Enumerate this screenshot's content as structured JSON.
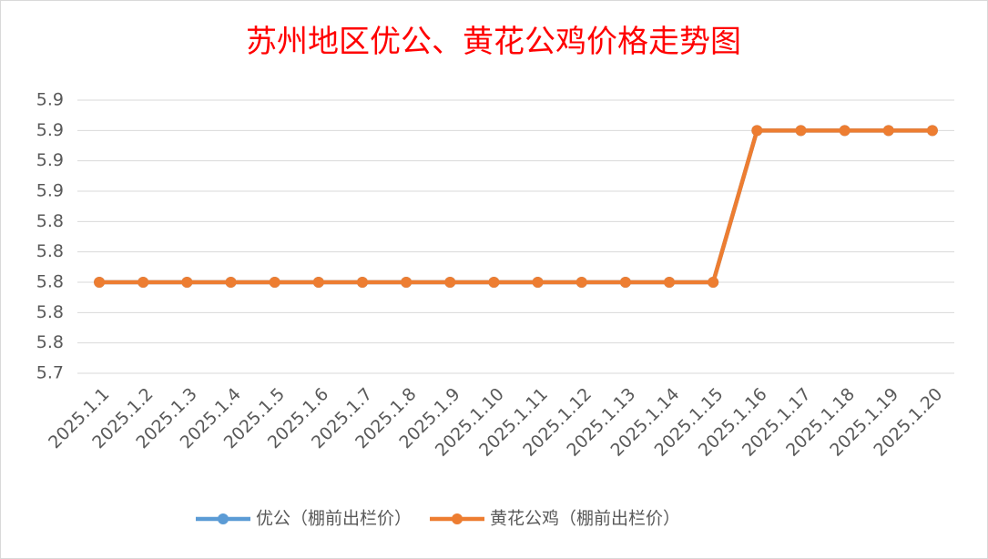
{
  "chart_data": {
    "type": "line",
    "title": "苏州地区优公、黄花公鸡价格走势图",
    "categories": [
      "2025.1.1",
      "2025.1.2",
      "2025.1.3",
      "2025.1.4",
      "2025.1.5",
      "2025.1.6",
      "2025.1.7",
      "2025.1.8",
      "2025.1.9",
      "2025.1.10",
      "2025.1.11",
      "2025.1.12",
      "2025.1.13",
      "2025.1.14",
      "2025.1.15",
      "2025.1.16",
      "2025.1.17",
      "2025.1.18",
      "2025.1.19",
      "2025.1.20"
    ],
    "series": [
      {
        "name": "优公（棚前出栏价）",
        "color": "#5b9bd5",
        "values": [
          5.8,
          5.8,
          5.8,
          5.8,
          5.8,
          5.8,
          5.8,
          5.8,
          5.8,
          5.8,
          5.8,
          5.8,
          5.8,
          5.8,
          5.8,
          5.9,
          5.9,
          5.9,
          5.9,
          5.9
        ]
      },
      {
        "name": "黄花公鸡（棚前出栏价）",
        "color": "#ed7d31",
        "values": [
          5.8,
          5.8,
          5.8,
          5.8,
          5.8,
          5.8,
          5.8,
          5.8,
          5.8,
          5.8,
          5.8,
          5.8,
          5.8,
          5.8,
          5.8,
          5.9,
          5.9,
          5.9,
          5.9,
          5.9
        ]
      }
    ],
    "ylim": [
      5.74,
      5.92
    ],
    "yticks": [
      {
        "value": 5.74,
        "label": "5.7"
      },
      {
        "value": 5.76,
        "label": "5.8"
      },
      {
        "value": 5.78,
        "label": "5.8"
      },
      {
        "value": 5.8,
        "label": "5.8"
      },
      {
        "value": 5.82,
        "label": "5.8"
      },
      {
        "value": 5.84,
        "label": "5.8"
      },
      {
        "value": 5.86,
        "label": "5.9"
      },
      {
        "value": 5.88,
        "label": "5.9"
      },
      {
        "value": 5.9,
        "label": "5.9"
      },
      {
        "value": 5.92,
        "label": "5.9"
      }
    ],
    "grid": true,
    "legend": "bottom"
  }
}
